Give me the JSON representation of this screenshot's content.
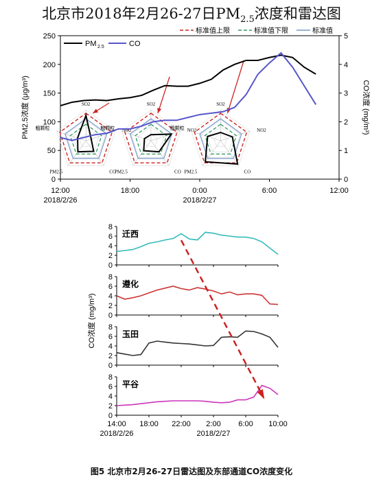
{
  "title_main": "北京市2018年2月26-27日PM",
  "title_sub": "2.5",
  "title_tail": "浓度和雷达图",
  "caption": "图5 北京市2月26-27日雷达图及东部通道CO浓度变化",
  "colors": {
    "pm25": "#000000",
    "co": "#5555cc",
    "upper": "#cc2222",
    "lower": "#339966",
    "standard": "#7799cc",
    "arrow": "#cc2222",
    "qianxi": "#33bbbb",
    "zunhua": "#cc3333",
    "yutian": "#333333",
    "pinggu": "#cc33bb"
  },
  "chart_data": [
    {
      "type": "line",
      "title": "北京市2018年2月26-27日PM2.5浓度和雷达图",
      "x_ticks": [
        "12:00",
        "18:00",
        "0:00",
        "6:00",
        "12:00"
      ],
      "x_tick_hours": [
        0,
        6,
        12,
        18,
        24
      ],
      "x_date_labels": [
        {
          "text": "2018/2/26",
          "hour": 0
        },
        {
          "text": "2018/2/27",
          "hour": 12
        }
      ],
      "ylabel_left": "PM2.5浓度 (μg/m³)",
      "ylabel_right": "CO浓度 (mg/m³)",
      "ylim_left": [
        0,
        250
      ],
      "ylim_right": [
        0,
        5
      ],
      "left_ticks": [
        0,
        50,
        100,
        150,
        200,
        250
      ],
      "right_ticks": [
        0,
        1,
        2,
        3,
        4,
        5
      ],
      "legend": {
        "pm25": "PM",
        "pm25_sub": "2.5",
        "co": "CO",
        "position": "top-left"
      },
      "legend_right": {
        "upper": "标准值上限",
        "lower": "标准值下限",
        "standard": "标准值",
        "position": "top-right"
      },
      "series": [
        {
          "name": "PM2.5",
          "axis": "left",
          "x": [
            0,
            1,
            2,
            3,
            4,
            5,
            6,
            7,
            8,
            9,
            10,
            11,
            12,
            13,
            14,
            15,
            16,
            17,
            18,
            19,
            20,
            21,
            22
          ],
          "y": [
            128,
            134,
            137,
            138,
            137,
            140,
            142,
            146,
            155,
            163,
            162,
            162,
            167,
            174,
            190,
            200,
            207,
            207,
            212,
            216,
            212,
            195,
            183
          ]
        },
        {
          "name": "CO",
          "axis": "right",
          "x": [
            0,
            1,
            2,
            3,
            4,
            5,
            6,
            7,
            8,
            9,
            10,
            11,
            12,
            13,
            14,
            15,
            16,
            17,
            18,
            19,
            20,
            21,
            22
          ],
          "y": [
            1.45,
            1.35,
            1.45,
            1.55,
            1.6,
            1.75,
            1.75,
            1.85,
            2.0,
            2.05,
            2.05,
            2.15,
            2.25,
            2.3,
            2.35,
            2.5,
            2.95,
            3.65,
            4.05,
            4.4,
            3.9,
            3.25,
            2.6
          ]
        }
      ],
      "radar": {
        "axes": [
          "SO2",
          "NO2",
          "CO",
          "PM2.5",
          "粗颗粒"
        ],
        "charts": [
          {
            "hour": 2.2,
            "observed": [
              0.92,
              0.2,
              0.48,
              0.5,
              0.32
            ]
          },
          {
            "hour": 7.8,
            "observed": [
              0.22,
              0.78,
              0.5,
              0.45,
              0.25
            ]
          },
          {
            "hour": 13.8,
            "observed": [
              0.3,
              0.45,
              1.05,
              0.95,
              0.5
            ]
          }
        ],
        "levels": {
          "upper": 1.0,
          "standard": 0.8,
          "lower": 0.6
        }
      }
    },
    {
      "type": "line",
      "ylabel": "CO浓度 (mg/m³)",
      "x_ticks": [
        "14:00",
        "18:00",
        "22:00",
        "2:00",
        "6:00",
        "10:00"
      ],
      "x_tick_hours": [
        0,
        4,
        8,
        12,
        16,
        20
      ],
      "x_date_labels": [
        {
          "text": "2018/2/26",
          "hour": 0
        },
        {
          "text": "2018/2/27",
          "hour": 12
        }
      ],
      "ylim": [
        0,
        8
      ],
      "y_ticks": [
        0,
        2,
        4,
        6,
        8
      ],
      "panels": [
        {
          "name": "迁西",
          "color_key": "qianxi",
          "x": [
            0,
            1,
            2,
            3,
            4,
            5,
            6,
            7,
            8,
            9,
            10,
            11,
            12,
            13,
            14,
            15,
            16,
            17,
            18,
            19,
            20
          ],
          "y": [
            2.8,
            3.0,
            3.2,
            3.8,
            4.5,
            4.8,
            5.2,
            5.5,
            6.5,
            5.4,
            5.2,
            6.8,
            6.6,
            6.2,
            6.0,
            5.8,
            5.8,
            5.5,
            4.8,
            3.5,
            2.2
          ]
        },
        {
          "name": "遵化",
          "color_key": "zunhua",
          "x": [
            0,
            1,
            2,
            3,
            4,
            5,
            6,
            7,
            8,
            9,
            10,
            11,
            12,
            13,
            14,
            15,
            16,
            17,
            18,
            19,
            20
          ],
          "y": [
            4.0,
            3.3,
            3.6,
            4.0,
            4.6,
            5.2,
            5.6,
            6.0,
            5.5,
            5.2,
            5.7,
            5.4,
            5.0,
            4.4,
            4.8,
            4.2,
            4.4,
            4.4,
            4.1,
            2.3,
            2.2
          ]
        },
        {
          "name": "玉田",
          "color_key": "yutian",
          "x": [
            0,
            1,
            2,
            3,
            4,
            5,
            6,
            7,
            8,
            9,
            10,
            11,
            12,
            13,
            14,
            15,
            16,
            17,
            18,
            19,
            20
          ],
          "y": [
            2.6,
            2.3,
            2.0,
            2.2,
            4.6,
            5.0,
            4.8,
            4.6,
            4.5,
            4.4,
            4.2,
            4.0,
            4.1,
            5.8,
            5.9,
            5.8,
            7.1,
            7.0,
            6.5,
            5.8,
            3.7
          ]
        },
        {
          "name": "平谷",
          "color_key": "pinggu",
          "x": [
            0,
            1,
            2,
            3,
            4,
            5,
            6,
            7,
            8,
            9,
            10,
            11,
            12,
            13,
            14,
            15,
            16,
            17,
            18,
            19,
            20
          ],
          "y": [
            2.0,
            2.1,
            2.2,
            2.4,
            2.6,
            2.8,
            2.9,
            3.0,
            3.0,
            3.0,
            3.0,
            2.9,
            2.7,
            2.6,
            2.7,
            3.2,
            3.2,
            3.8,
            6.2,
            5.6,
            4.3
          ]
        }
      ]
    }
  ]
}
